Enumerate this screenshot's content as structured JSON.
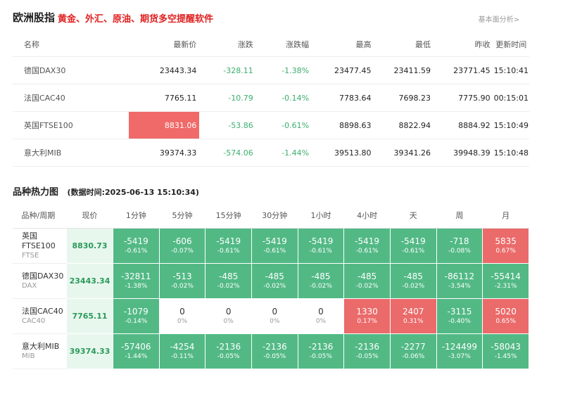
{
  "header": {
    "brand": "欧洲股指",
    "slogan": "黄金、外汇、原油、期货多空提醒软件",
    "more_link": "基本面分析>"
  },
  "quotes": {
    "columns": [
      "名称",
      "最新价",
      "涨跌",
      "涨跌幅",
      "最高",
      "最低",
      "昨收",
      "更新时间"
    ],
    "rows": [
      {
        "name": "德国DAX30",
        "last": "23443.34",
        "change": "-328.11",
        "pct": "-1.38%",
        "high": "23477.45",
        "low": "23411.59",
        "prev": "23771.45",
        "time": "15:10:41",
        "flash": false
      },
      {
        "name": "法国CAC40",
        "last": "7765.11",
        "change": "-10.79",
        "pct": "-0.14%",
        "high": "7783.64",
        "low": "7698.23",
        "prev": "7775.90",
        "time": "00:15:01",
        "flash": false
      },
      {
        "name": "英国FTSE100",
        "last": "8831.06",
        "change": "-53.86",
        "pct": "-0.61%",
        "high": "8898.63",
        "low": "8822.94",
        "prev": "8884.92",
        "time": "15:10:49",
        "flash": true
      },
      {
        "name": "意大利MIB",
        "last": "39374.33",
        "change": "-574.06",
        "pct": "-1.44%",
        "high": "39513.80",
        "low": "39341.26",
        "prev": "39948.39",
        "time": "15:10:48",
        "flash": false
      }
    ]
  },
  "heatmap": {
    "title": "品种热力图",
    "data_time": "(数据时间:2025-06-13 15:10:34)",
    "columns": [
      "品种/周期",
      "现价",
      "1分钟",
      "5分钟",
      "15分钟",
      "30分钟",
      "1小时",
      "4小时",
      "天",
      "周",
      "月"
    ],
    "colors": {
      "down": "#52b985",
      "up": "#eb6a6a",
      "flat": "#ffffff"
    },
    "rows": [
      {
        "name": "英国FTSE100",
        "code": "FTSE",
        "price": "8830.73",
        "cells": [
          {
            "v": "-5419",
            "p": "-0.61%",
            "c": "green"
          },
          {
            "v": "-606",
            "p": "-0.07%",
            "c": "green"
          },
          {
            "v": "-5419",
            "p": "-0.61%",
            "c": "green"
          },
          {
            "v": "-5419",
            "p": "-0.61%",
            "c": "green"
          },
          {
            "v": "-5419",
            "p": "-0.61%",
            "c": "green"
          },
          {
            "v": "-5419",
            "p": "-0.61%",
            "c": "green"
          },
          {
            "v": "-5419",
            "p": "-0.61%",
            "c": "green"
          },
          {
            "v": "-718",
            "p": "-0.08%",
            "c": "green"
          },
          {
            "v": "5835",
            "p": "0.67%",
            "c": "red"
          }
        ]
      },
      {
        "name": "德国DAX30",
        "code": "DAX",
        "price": "23443.34",
        "cells": [
          {
            "v": "-32811",
            "p": "-1.38%",
            "c": "green"
          },
          {
            "v": "-513",
            "p": "-0.02%",
            "c": "green"
          },
          {
            "v": "-485",
            "p": "-0.02%",
            "c": "green"
          },
          {
            "v": "-485",
            "p": "-0.02%",
            "c": "green"
          },
          {
            "v": "-485",
            "p": "-0.02%",
            "c": "green"
          },
          {
            "v": "-485",
            "p": "-0.02%",
            "c": "green"
          },
          {
            "v": "-485",
            "p": "-0.02%",
            "c": "green"
          },
          {
            "v": "-86112",
            "p": "-3.54%",
            "c": "green"
          },
          {
            "v": "-55414",
            "p": "-2.31%",
            "c": "green"
          }
        ]
      },
      {
        "name": "法国CAC40",
        "code": "CAC40",
        "price": "7765.11",
        "cells": [
          {
            "v": "-1079",
            "p": "-0.14%",
            "c": "green"
          },
          {
            "v": "0",
            "p": "0%",
            "c": "neutral"
          },
          {
            "v": "0",
            "p": "0%",
            "c": "neutral"
          },
          {
            "v": "0",
            "p": "0%",
            "c": "neutral"
          },
          {
            "v": "0",
            "p": "0%",
            "c": "neutral"
          },
          {
            "v": "1330",
            "p": "0.17%",
            "c": "red"
          },
          {
            "v": "2407",
            "p": "0.31%",
            "c": "red"
          },
          {
            "v": "-3115",
            "p": "-0.40%",
            "c": "green"
          },
          {
            "v": "5020",
            "p": "0.65%",
            "c": "red"
          }
        ]
      },
      {
        "name": "意大利MIB",
        "code": "MIB",
        "price": "39374.33",
        "cells": [
          {
            "v": "-57406",
            "p": "-1.44%",
            "c": "green"
          },
          {
            "v": "-4254",
            "p": "-0.11%",
            "c": "green"
          },
          {
            "v": "-2136",
            "p": "-0.05%",
            "c": "green"
          },
          {
            "v": "-2136",
            "p": "-0.05%",
            "c": "green"
          },
          {
            "v": "-2136",
            "p": "-0.05%",
            "c": "green"
          },
          {
            "v": "-2136",
            "p": "-0.05%",
            "c": "green"
          },
          {
            "v": "-2277",
            "p": "-0.06%",
            "c": "green"
          },
          {
            "v": "-124499",
            "p": "-3.07%",
            "c": "green"
          },
          {
            "v": "-58043",
            "p": "-1.45%",
            "c": "green"
          }
        ]
      }
    ]
  }
}
